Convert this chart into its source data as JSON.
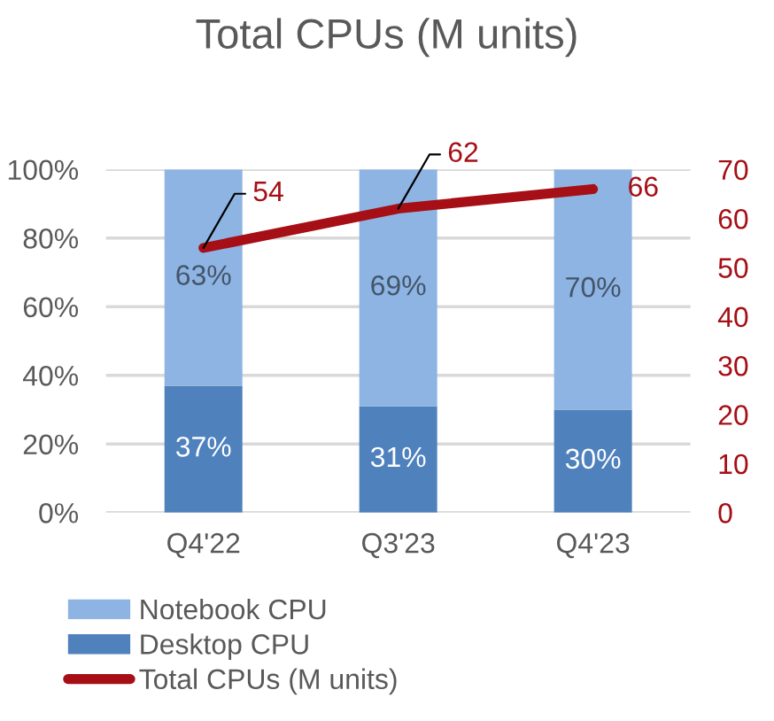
{
  "chart_data": {
    "type": "bar",
    "title": "Total CPUs (M units)",
    "categories": [
      "Q4'22",
      "Q3'23",
      "Q4'23"
    ],
    "stacked": true,
    "series": [
      {
        "name": "Desktop CPU",
        "color": "#4f81bd",
        "values": [
          37,
          31,
          30
        ],
        "value_labels": [
          "37%",
          "31%",
          "30%"
        ]
      },
      {
        "name": "Notebook CPU",
        "color": "#8db4e2",
        "values": [
          63,
          69,
          70
        ],
        "value_labels": [
          "63%",
          "69%",
          "70%"
        ]
      },
      {
        "name": "Total CPUs (M units)",
        "type": "line",
        "axis": "y2",
        "color": "#a50f15",
        "values": [
          54,
          62,
          66
        ],
        "value_labels": [
          "54",
          "62",
          "66"
        ]
      }
    ],
    "ylim": [
      0,
      100
    ],
    "yticks": [
      {
        "value": 0,
        "label": "0%"
      },
      {
        "value": 20,
        "label": "20%"
      },
      {
        "value": 40,
        "label": "40%"
      },
      {
        "value": 60,
        "label": "60%"
      },
      {
        "value": 80,
        "label": "80%"
      },
      {
        "value": 100,
        "label": "100%"
      }
    ],
    "y2lim": [
      0,
      70
    ],
    "y2ticks": [
      0,
      10,
      20,
      30,
      40,
      50,
      60,
      70
    ],
    "grid": "y",
    "legend": "bottom"
  }
}
